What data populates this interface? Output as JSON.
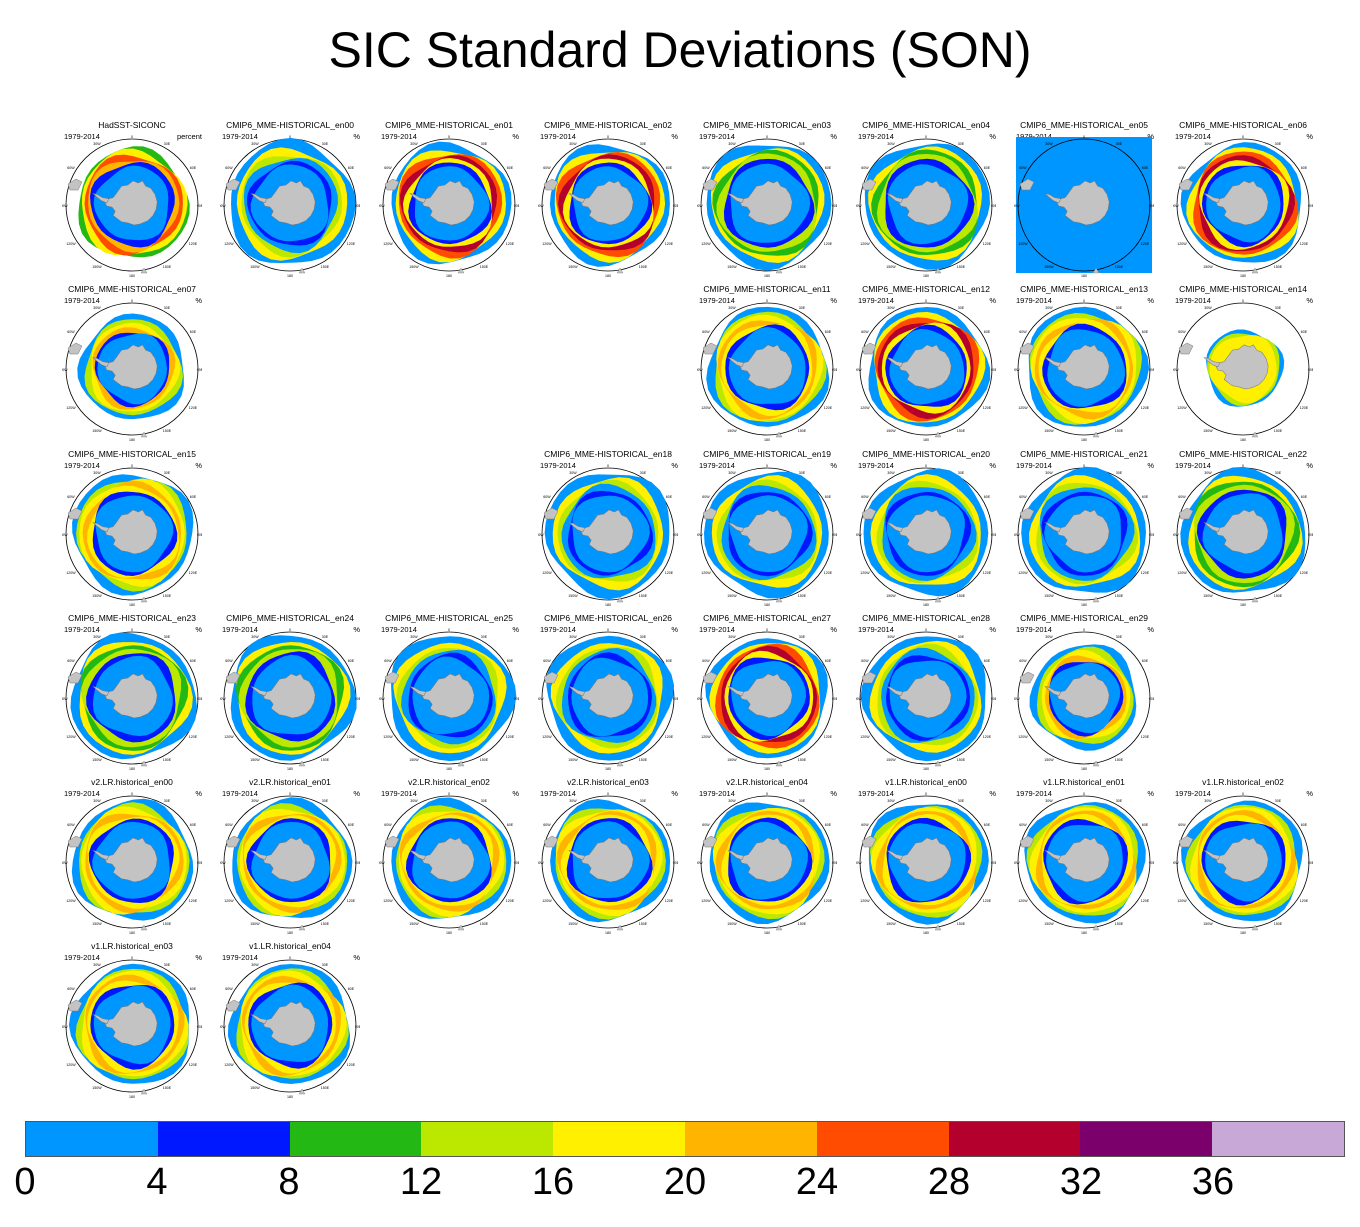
{
  "title": "SIC Standard Deviations (SON)",
  "panel_defaults": {
    "period": "1979-2014",
    "unit": "%"
  },
  "panels": [
    {
      "title": "HadSST-SICONC",
      "unit": "percent",
      "pattern": "obs"
    },
    {
      "title": "CMIP6_MME-HISTORICAL_en00",
      "pattern": "wide"
    },
    {
      "title": "CMIP6_MME-HISTORICAL_en01",
      "pattern": "redtop"
    },
    {
      "title": "CMIP6_MME-HISTORICAL_en02",
      "pattern": "redtop"
    },
    {
      "title": "CMIP6_MME-HISTORICAL_en03",
      "pattern": "green"
    },
    {
      "title": "CMIP6_MME-HISTORICAL_en04",
      "pattern": "green"
    },
    {
      "title": "CMIP6_MME-HISTORICAL_en05",
      "pattern": "blank"
    },
    {
      "title": "CMIP6_MME-HISTORICAL_en06",
      "pattern": "redtop"
    },
    {
      "title": "CMIP6_MME-HISTORICAL_en07",
      "pattern": "small"
    },
    {
      "title": "CMIP6_MME-HISTORICAL_en11",
      "pattern": "ring"
    },
    {
      "title": "CMIP6_MME-HISTORICAL_en12",
      "pattern": "redtop"
    },
    {
      "title": "CMIP6_MME-HISTORICAL_en13",
      "pattern": "ring"
    },
    {
      "title": "CMIP6_MME-HISTORICAL_en14",
      "pattern": "tiny"
    },
    {
      "title": "CMIP6_MME-HISTORICAL_en15",
      "pattern": "ring"
    },
    {
      "title": "CMIP6_MME-HISTORICAL_en18",
      "pattern": "wide"
    },
    {
      "title": "CMIP6_MME-HISTORICAL_en19",
      "pattern": "wide"
    },
    {
      "title": "CMIP6_MME-HISTORICAL_en20",
      "pattern": "wide"
    },
    {
      "title": "CMIP6_MME-HISTORICAL_en21",
      "pattern": "wide"
    },
    {
      "title": "CMIP6_MME-HISTORICAL_en22",
      "pattern": "green"
    },
    {
      "title": "CMIP6_MME-HISTORICAL_en23",
      "pattern": "green"
    },
    {
      "title": "CMIP6_MME-HISTORICAL_en24",
      "pattern": "green"
    },
    {
      "title": "CMIP6_MME-HISTORICAL_en25",
      "pattern": "wide"
    },
    {
      "title": "CMIP6_MME-HISTORICAL_en26",
      "pattern": "wide"
    },
    {
      "title": "CMIP6_MME-HISTORICAL_en27",
      "pattern": "redtop"
    },
    {
      "title": "CMIP6_MME-HISTORICAL_en28",
      "pattern": "wide"
    },
    {
      "title": "CMIP6_MME-HISTORICAL_en29",
      "pattern": "small"
    },
    {
      "title": "v2.LR.historical_en00",
      "pattern": "ring"
    },
    {
      "title": "v2.LR.historical_en01",
      "pattern": "ring"
    },
    {
      "title": "v2.LR.historical_en02",
      "pattern": "ring"
    },
    {
      "title": "v2.LR.historical_en03",
      "pattern": "ring"
    },
    {
      "title": "v2.LR.historical_en04",
      "pattern": "ring"
    },
    {
      "title": "v1.LR.historical_en00",
      "pattern": "ring"
    },
    {
      "title": "v1.LR.historical_en01",
      "pattern": "ring"
    },
    {
      "title": "v1.LR.historical_en02",
      "pattern": "ring"
    },
    {
      "title": "v1.LR.historical_en03",
      "pattern": "ring"
    },
    {
      "title": "v1.LR.historical_en04",
      "pattern": "ring"
    }
  ],
  "map_labels": {
    "top": "0",
    "top_left": "30W",
    "top_right": "30E",
    "left_upper": "60W",
    "left_mid": "90W",
    "left_lower": "120W",
    "right_upper": "60E",
    "right_mid": "90E",
    "right_lower": "120E",
    "bottom_left": "150W",
    "bottom": "180",
    "bottom_right": "150E"
  },
  "colorbar": {
    "ticks": [
      "0",
      "4",
      "8",
      "12",
      "16",
      "20",
      "24",
      "28",
      "32",
      "36"
    ],
    "colors": [
      "#0096ff",
      "#0018ff",
      "#24b814",
      "#bce800",
      "#fff000",
      "#ffb400",
      "#ff4c00",
      "#b4002c",
      "#7c006c",
      "#c8a8d6"
    ]
  },
  "palette": {
    "land": "#c3c3c3",
    "sd_0_4": "#0096ff",
    "sd_4_8": "#0018ff",
    "sd_8_12": "#24b814",
    "sd_12_16": "#bce800",
    "sd_16_20": "#fff000",
    "sd_20_24": "#ffb400",
    "sd_24_28": "#ff4c00",
    "sd_28_32": "#b4002c",
    "sd_32_36": "#7c006c",
    "sd_36_plus": "#c8a8d6"
  }
}
